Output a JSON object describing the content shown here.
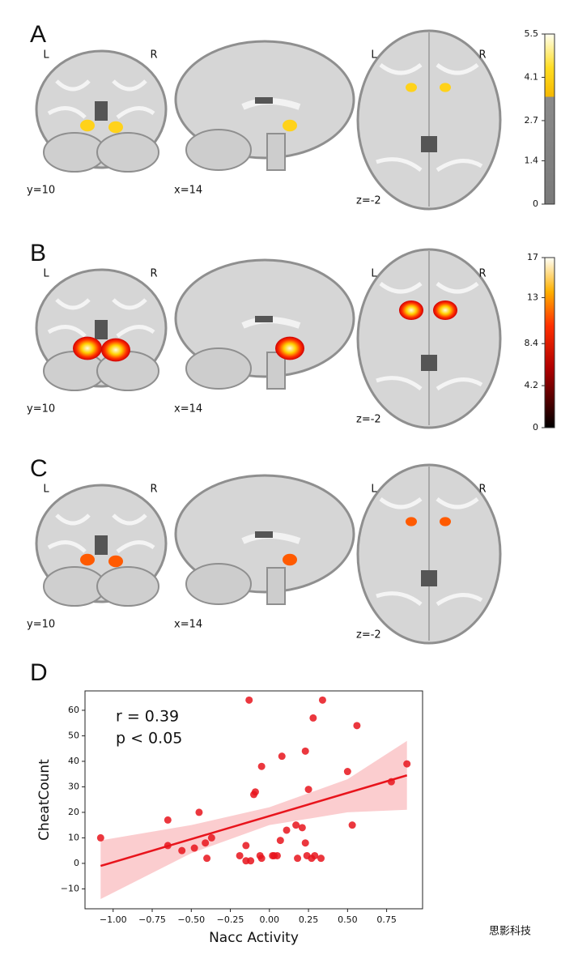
{
  "panels": [
    {
      "label": "A",
      "overlay_color": "#ffd21a",
      "views": [
        {
          "left": "L",
          "right": "R",
          "coord": "y=10"
        },
        {
          "coord": "x=14"
        },
        {
          "left": "L",
          "right": "R",
          "coord": "z=-2"
        }
      ],
      "colorbar": {
        "ticks": [
          0,
          1.4,
          2.7,
          4.1,
          5.5
        ]
      }
    },
    {
      "label": "B",
      "overlay_color": "#ff2a00",
      "views": [
        {
          "left": "L",
          "right": "R",
          "coord": "y=10"
        },
        {
          "coord": "x=14"
        },
        {
          "left": "L",
          "right": "R",
          "coord": "z=-2"
        }
      ],
      "colorbar": {
        "ticks": [
          0,
          4.2,
          8.4,
          13,
          17
        ]
      }
    },
    {
      "label": "C",
      "overlay_color": "#ff5a00",
      "views": [
        {
          "left": "L",
          "right": "R",
          "coord": "y=10"
        },
        {
          "coord": "x=14"
        },
        {
          "left": "L",
          "right": "R",
          "coord": "z=-2"
        }
      ]
    }
  ],
  "chart_data": {
    "type": "scatter",
    "label": "D",
    "xlabel": "Nacc Activity",
    "ylabel": "CheatCount",
    "annotations": [
      "r = 0.39",
      "p < 0.05"
    ],
    "color": "#e8141c",
    "x": [
      -1.08,
      -0.65,
      -0.65,
      -0.56,
      -0.48,
      -0.45,
      -0.41,
      -0.4,
      -0.37,
      -0.19,
      -0.15,
      -0.15,
      -0.13,
      -0.12,
      -0.1,
      -0.09,
      -0.06,
      -0.05,
      -0.05,
      0.02,
      0.03,
      0.05,
      0.07,
      0.08,
      0.11,
      0.17,
      0.18,
      0.21,
      0.23,
      0.23,
      0.24,
      0.25,
      0.27,
      0.28,
      0.29,
      0.33,
      0.34,
      0.5,
      0.53,
      0.56,
      0.78,
      0.88
    ],
    "values": [
      10,
      17,
      7,
      5,
      6,
      20,
      8,
      2,
      10,
      3,
      7,
      1,
      64,
      1,
      27,
      28,
      3,
      38,
      2,
      3,
      3,
      3,
      9,
      42,
      13,
      15,
      2,
      14,
      44,
      8,
      3,
      29,
      2,
      57,
      3,
      2,
      64,
      36,
      15,
      54,
      32,
      39
    ],
    "fit": {
      "x": [
        -1.08,
        0.88
      ],
      "y": [
        -1,
        34.5
      ]
    },
    "ci_band": {
      "x": [
        -1.08,
        -0.5,
        0,
        0.5,
        0.88
      ],
      "lower": [
        -14,
        4,
        15,
        20,
        21
      ],
      "upper": [
        9,
        15,
        22,
        33,
        48
      ]
    },
    "xlim": [
      -1.18,
      0.98
    ],
    "ylim": [
      -17.8,
      67.6
    ],
    "xticks": [
      {
        "value": -1,
        "label": "−1.00"
      },
      {
        "value": -0.75,
        "label": "−0.75"
      },
      {
        "value": -0.5,
        "label": "−0.50"
      },
      {
        "value": -0.25,
        "label": "−0.25"
      },
      {
        "value": 0,
        "label": "0.00"
      },
      {
        "value": 0.25,
        "label": "0.25"
      },
      {
        "value": 0.5,
        "label": "0.50"
      },
      {
        "value": 0.75,
        "label": "0.75"
      }
    ],
    "yticks": [
      {
        "value": -10,
        "label": "−10"
      },
      0,
      10,
      20,
      30,
      40,
      50,
      60
    ]
  },
  "watermark": "思影科技"
}
